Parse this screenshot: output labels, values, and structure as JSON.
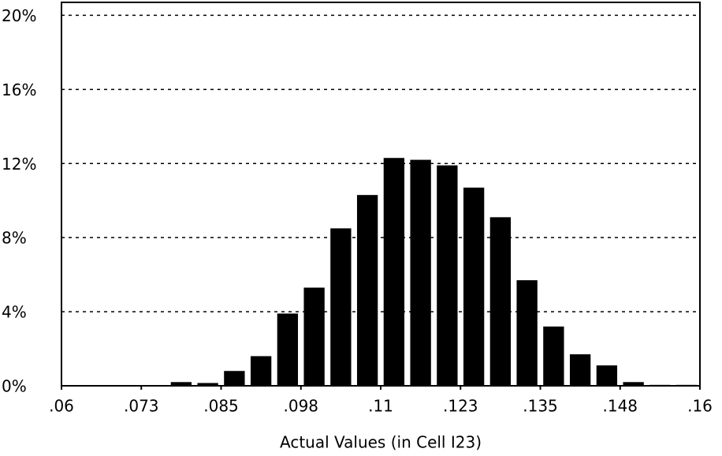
{
  "chart_data": {
    "type": "histogram",
    "xlabel": "Actual Values (in Cell I23)",
    "bins": [
      0.06,
      0.064167,
      0.068333,
      0.0725,
      0.076667,
      0.080833,
      0.085,
      0.089167,
      0.093333,
      0.0975,
      0.101667,
      0.105833,
      0.11,
      0.114167,
      0.118333,
      0.1225,
      0.126667,
      0.130833,
      0.135,
      0.139167,
      0.143333,
      0.1475,
      0.151667,
      0.155833,
      0.16
    ],
    "values": [
      0,
      0,
      0,
      0,
      0.2,
      0.15,
      0.8,
      1.6,
      3.9,
      5.3,
      8.5,
      10.3,
      12.3,
      12.2,
      11.9,
      10.7,
      9.1,
      5.7,
      3.2,
      1.7,
      1.1,
      0.2,
      0.05,
      0.05
    ],
    "color": "#000000",
    "xlim": [
      0.06,
      0.16
    ],
    "xticks": [
      {
        "value": 0.06,
        "label": ".06"
      },
      {
        "value": 0.0725,
        "label": ".073"
      },
      {
        "value": 0.085,
        "label": ".085"
      },
      {
        "value": 0.0975,
        "label": ".098"
      },
      {
        "value": 0.11,
        "label": ".11"
      },
      {
        "value": 0.1225,
        "label": ".123"
      },
      {
        "value": 0.135,
        "label": ".135"
      },
      {
        "value": 0.1475,
        "label": ".148"
      },
      {
        "value": 0.16,
        "label": ".16"
      }
    ],
    "ylim": [
      0,
      20.7
    ],
    "yticks": [
      {
        "value": 0,
        "label": "0%"
      },
      {
        "value": 4,
        "label": "4%"
      },
      {
        "value": 8,
        "label": "8%"
      },
      {
        "value": 12,
        "label": "12%"
      },
      {
        "value": 16,
        "label": "16%"
      },
      {
        "value": 20,
        "label": "20%"
      }
    ],
    "grid": true
  }
}
